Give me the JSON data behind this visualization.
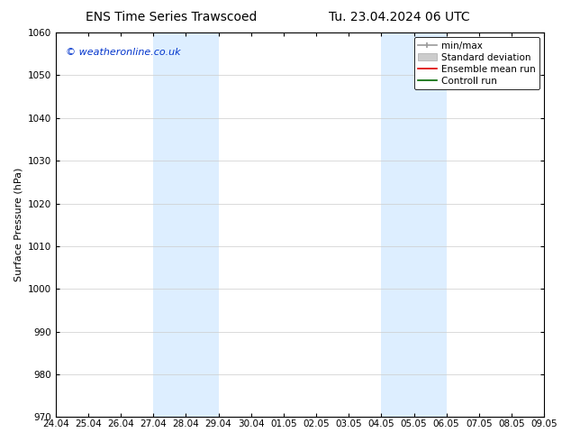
{
  "title_left": "ENS Time Series Trawscoed",
  "title_right": "Tu. 23.04.2024 06 UTC",
  "ylabel": "Surface Pressure (hPa)",
  "ylim": [
    970,
    1060
  ],
  "ytick_interval": 10,
  "background_color": "#ffffff",
  "plot_bg_color": "#ffffff",
  "watermark": "© weatheronline.co.uk",
  "watermark_color": "#0033cc",
  "shaded_regions": [
    {
      "xstart": 3,
      "xend": 5,
      "color": "#ddeeff"
    },
    {
      "xstart": 10,
      "xend": 12,
      "color": "#ddeeff"
    }
  ],
  "xtick_labels": [
    "24.04",
    "25.04",
    "26.04",
    "27.04",
    "28.04",
    "29.04",
    "30.04",
    "01.05",
    "02.05",
    "03.05",
    "04.05",
    "05.05",
    "06.05",
    "07.05",
    "08.05",
    "09.05"
  ],
  "title_fontsize": 10,
  "axis_fontsize": 8,
  "tick_fontsize": 7.5,
  "watermark_fontsize": 8,
  "legend_fontsize": 7.5
}
